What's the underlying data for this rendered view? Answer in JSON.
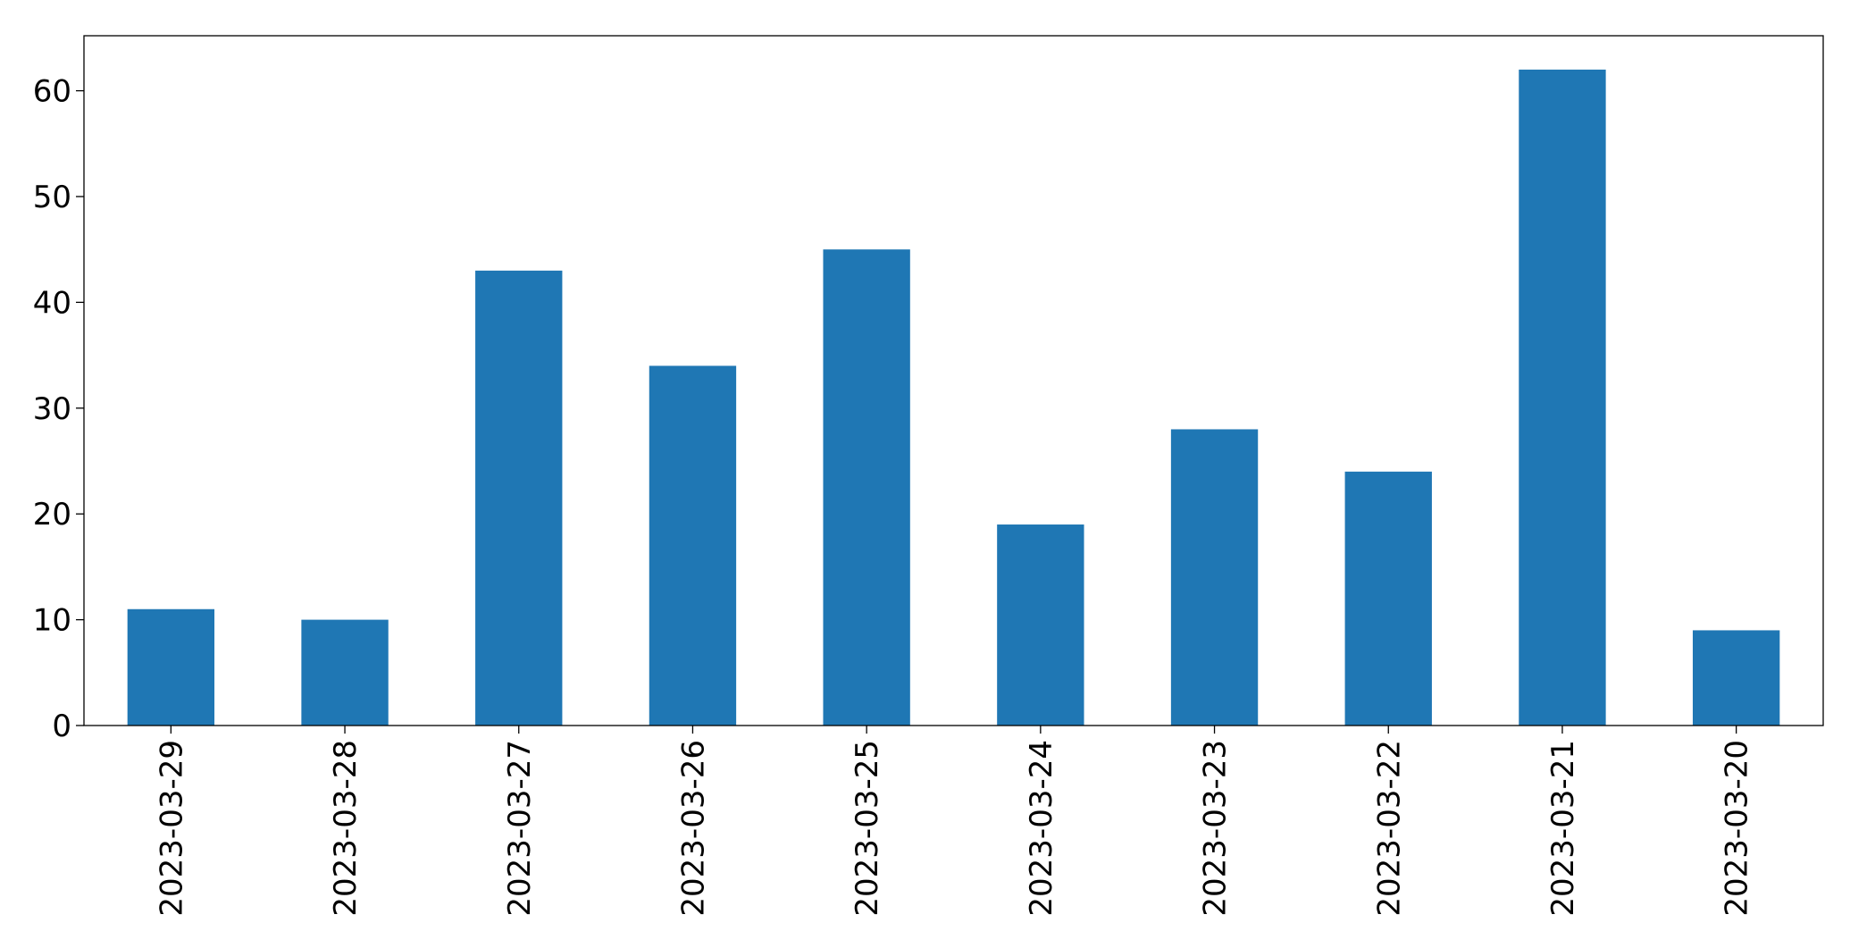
{
  "chart_data": {
    "type": "bar",
    "categories": [
      "2023-03-29",
      "2023-03-28",
      "2023-03-27",
      "2023-03-26",
      "2023-03-25",
      "2023-03-24",
      "2023-03-23",
      "2023-03-22",
      "2023-03-21",
      "2023-03-20"
    ],
    "values": [
      11,
      10,
      43,
      34,
      45,
      19,
      28,
      24,
      62,
      9
    ],
    "color": "#1f77b4",
    "ylim": [
      0,
      65.2
    ],
    "yticks": [
      0,
      10,
      20,
      30,
      40,
      50,
      60
    ],
    "grid": false
  }
}
